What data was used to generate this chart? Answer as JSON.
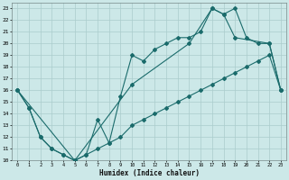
{
  "xlabel": "Humidex (Indice chaleur)",
  "background_color": "#cce8e8",
  "grid_color": "#aacccc",
  "line_color": "#1a6b6b",
  "xlim": [
    -0.5,
    23.5
  ],
  "ylim": [
    10,
    23.5
  ],
  "xticks": [
    0,
    1,
    2,
    3,
    4,
    5,
    6,
    7,
    8,
    9,
    10,
    11,
    12,
    13,
    14,
    15,
    16,
    17,
    18,
    19,
    20,
    21,
    22,
    23
  ],
  "yticks": [
    10,
    11,
    12,
    13,
    14,
    15,
    16,
    17,
    18,
    19,
    20,
    21,
    22,
    23
  ],
  "line1_x": [
    0,
    1,
    2,
    3,
    4,
    5,
    6,
    7,
    8,
    9,
    10,
    11,
    12,
    13,
    14,
    15,
    16,
    17,
    18,
    19,
    20,
    21,
    22,
    23
  ],
  "line1_y": [
    16,
    14.5,
    12,
    11,
    10.5,
    10,
    10.5,
    13.5,
    11.5,
    15.5,
    19,
    18.5,
    19.5,
    20.0,
    20.5,
    20.5,
    21.0,
    23,
    22.5,
    23,
    20.5,
    20,
    20,
    16
  ],
  "line2_x": [
    0,
    1,
    2,
    3,
    4,
    5,
    6,
    7,
    8,
    9,
    10,
    11,
    12,
    13,
    14,
    15,
    16,
    17,
    18,
    19,
    20,
    21,
    22,
    23
  ],
  "line2_y": [
    16,
    14.5,
    12,
    11,
    10.5,
    10,
    10.5,
    11.0,
    11.5,
    12,
    13,
    13.5,
    14,
    14.5,
    15,
    15.5,
    16,
    16.5,
    17,
    17.5,
    18,
    18.5,
    19,
    16
  ],
  "line3_x": [
    0,
    5,
    10,
    15,
    17,
    18,
    19,
    22,
    23
  ],
  "line3_y": [
    16,
    10,
    16.5,
    20,
    23,
    22.5,
    20.5,
    20,
    16
  ]
}
